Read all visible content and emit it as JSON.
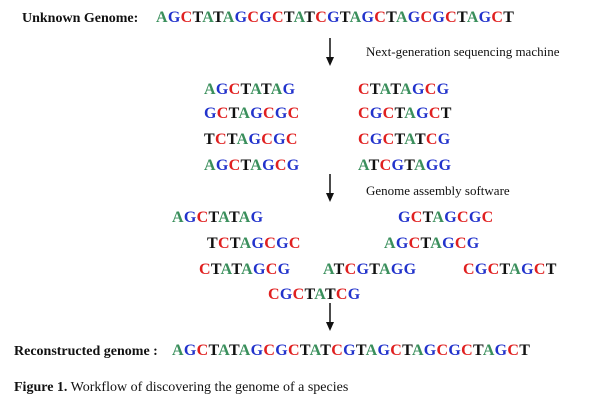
{
  "title_label": "Unknown Genome:",
  "unknown_genome": "AGCTATAGCGCTATCGTAGCTAGCGCTAGCT",
  "step1_label": "Next-generation sequencing machine",
  "reads_left": [
    "AGCTATAG",
    "GCTAGCGC",
    "TCTAGCGC",
    "AGCTAGCG"
  ],
  "reads_right": [
    "CTATAGCG",
    "CGCTAGCT",
    "CGCTATCG",
    "ATCGTAGG"
  ],
  "step2_label": "Genome assembly software",
  "assembly_reads": [
    "AGCTATAG",
    "GCTAGCGC",
    "TCTAGCGC",
    "AGCTAGCG",
    "CTATAGCG",
    "ATCGTAGG",
    "CGCTAGCT",
    "CGCTATCG"
  ],
  "reconstructed_label": "Reconstructed genome :",
  "reconstructed_genome": "AGCTATAGCGCTATCGTAGCTAGCGCTAGCT",
  "caption_bold": "Figure 1.",
  "caption_text": "Workflow of discovering the genome of a species",
  "colors": {
    "A": "#3a8f5c",
    "G": "#2233cc",
    "C": "#e02020",
    "T": "#111111"
  }
}
